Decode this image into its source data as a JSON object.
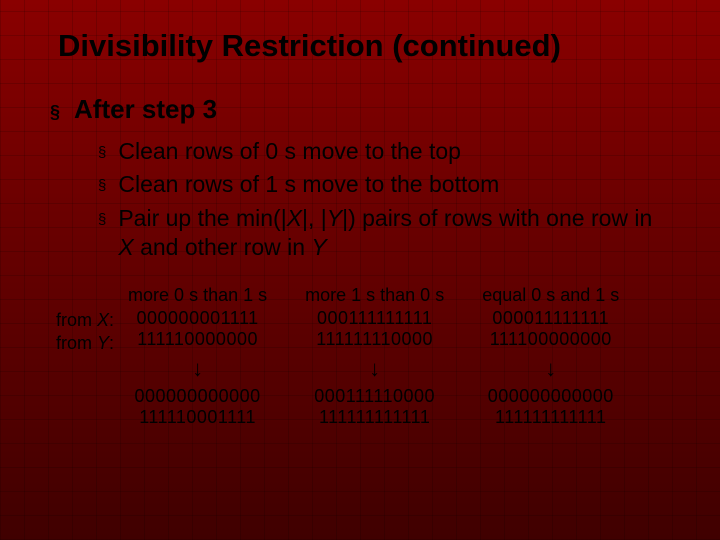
{
  "title": "Divisibility Restriction (continued)",
  "level1": {
    "bullet": "§",
    "text": "After step 3"
  },
  "level2": {
    "bullet": "§",
    "items": [
      "Clean rows of 0 s move to the top",
      "Clean rows of 1 s move to the bottom"
    ],
    "pair_prefix": "Pair up the min(|",
    "pair_mid1": "|, |",
    "pair_mid2": "|) pairs of rows with one row in ",
    "pair_mid3": " and other row in ",
    "X": "X",
    "Y": "Y"
  },
  "rowlabels": {
    "fromX_pre": "from ",
    "fromX_var": "X",
    "fromX_suf": ":",
    "fromY_pre": "from ",
    "fromY_var": "Y",
    "fromY_suf": ":"
  },
  "columns": [
    {
      "header": "more 0 s than 1 s",
      "x": "000000001111",
      "y": "111110000000",
      "r1": "000000000000",
      "r2": "111110001111"
    },
    {
      "header": "more 1 s than 0 s",
      "x": "000111111111",
      "y": "111111110000",
      "r1": "000111110000",
      "r2": "111111111111"
    },
    {
      "header": "equal 0 s and 1 s",
      "x": "000011111111",
      "y": "111100000000",
      "r1": "000000000000",
      "r2": "111111111111"
    }
  ],
  "arrow_glyph": "↓",
  "colors": {
    "text": "#000000",
    "bg_top": "#8a0000",
    "bg_bottom": "#400000"
  },
  "fontsizes": {
    "title": 31,
    "l1": 26,
    "l2": 23,
    "table": 18
  }
}
